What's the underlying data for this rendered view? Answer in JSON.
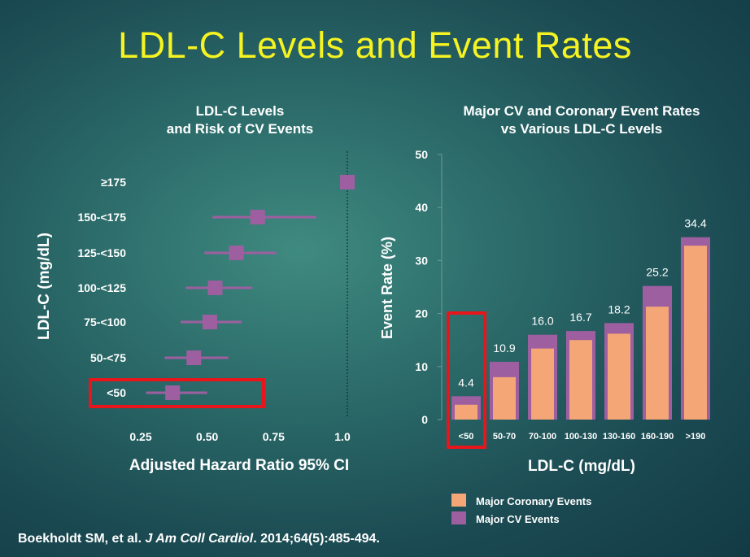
{
  "title": "LDL-C Levels and Event Rates",
  "citation": {
    "prefix": "Boekholdt SM, et al. ",
    "journal": "J Am Coll Cardiol",
    "suffix": ". 2014;64(5):485-494."
  },
  "chart_data": [
    {
      "type": "forest",
      "title_line1": "LDL-C Levels",
      "title_line2": "and Risk of CV Events",
      "xlabel": "Adjusted Hazard Ratio 95% CI",
      "ylabel": "LDL-C (mg/dL)",
      "xlim": [
        0.25,
        1.05
      ],
      "xticks": [
        0.25,
        0.5,
        0.75,
        1.0
      ],
      "xtick_labels": [
        "0.25",
        "0.50",
        "0.75",
        "1.0"
      ],
      "reference_line": 1.0,
      "categories": [
        "≥175",
        "150-<175",
        "125-<150",
        "100-<125",
        "75-<100",
        "50-<75",
        "<50"
      ],
      "estimates": [
        1.0,
        0.69,
        0.61,
        0.53,
        0.51,
        0.45,
        0.37
      ],
      "ci_low": [
        1.0,
        0.52,
        0.49,
        0.42,
        0.4,
        0.34,
        0.27
      ],
      "ci_high": [
        1.0,
        0.91,
        0.76,
        0.67,
        0.63,
        0.58,
        0.5
      ],
      "highlight": "<50",
      "color": "#9e5fa0",
      "highlight_color": "#e8151b"
    },
    {
      "type": "bar",
      "title_line1": "Major CV and Coronary Event Rates",
      "title_line2": "vs Various LDL-C Levels",
      "xlabel": "LDL-C (mg/dL)",
      "ylabel": "Event Rate (%)",
      "ylim": [
        0,
        50
      ],
      "yticks": [
        0,
        10,
        20,
        30,
        40,
        50
      ],
      "categories": [
        "<50",
        "50-70",
        "70-100",
        "100-130",
        "130-160",
        "160-190",
        ">190"
      ],
      "series": [
        {
          "name": "Major CV Events",
          "values": [
            4.4,
            10.9,
            16.0,
            16.7,
            18.2,
            25.2,
            34.4
          ],
          "color": "#9e5fa0"
        },
        {
          "name": "Major Coronary Events",
          "values": [
            2.8,
            8.0,
            13.4,
            15.0,
            16.2,
            21.3,
            32.8
          ],
          "color": "#f4a677"
        }
      ],
      "data_labels": [
        "4.4",
        "10.9",
        "16.0",
        "16.7",
        "18.2",
        "25.2",
        "34.4"
      ],
      "legend": [
        "Major Coronary Events",
        "Major CV Events"
      ],
      "highlight": "<50",
      "highlight_color": "#e8151b"
    }
  ]
}
